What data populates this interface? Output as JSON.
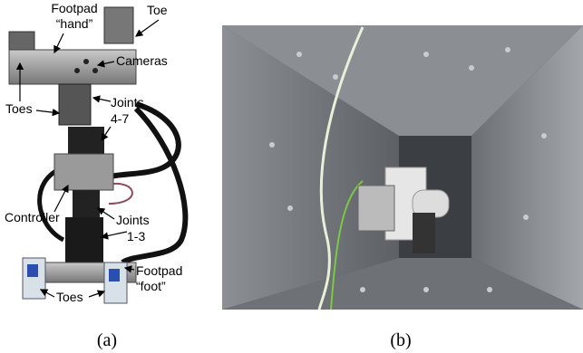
{
  "panel_a": {
    "labels": [
      "Footpad",
      "“hand”",
      "Toe",
      "Cameras",
      "Toes",
      "Joints",
      "4-7",
      "Controller",
      "Joints",
      "1-3",
      "Footpad",
      "“foot”",
      "Toes"
    ],
    "caption": "(a)"
  },
  "panel_b": {
    "caption": "(b)"
  }
}
